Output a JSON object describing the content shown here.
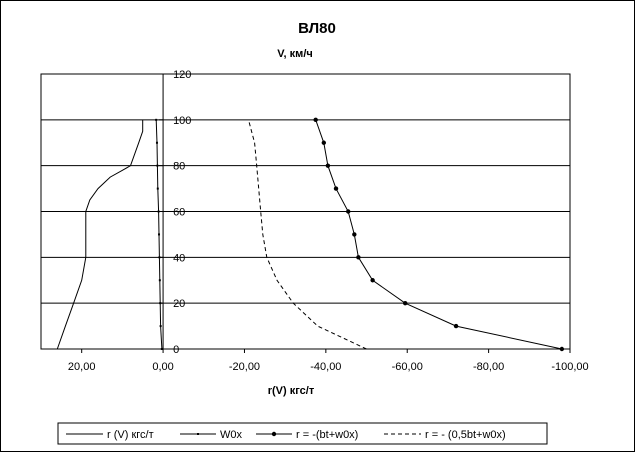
{
  "chart_data": {
    "type": "line",
    "title": "ВЛ80",
    "ylabel": "V, км/ч",
    "xlabel": "r(V) кгс/т",
    "xlim": [
      30,
      -100
    ],
    "ylim": [
      0,
      120
    ],
    "x_reversed": true,
    "y_axis_crosses_at_x": 0,
    "x_ticks": [
      "20,00",
      "0,00",
      "-20,00",
      "-40,00",
      "-60,00",
      "-80,00",
      "-100,00"
    ],
    "x_tick_values": [
      20,
      0,
      -20,
      -40,
      -60,
      -80,
      -100
    ],
    "y_ticks": [
      "0",
      "20",
      "40",
      "60",
      "80",
      "100",
      "120"
    ],
    "y_tick_values": [
      0,
      20,
      40,
      60,
      80,
      100,
      120
    ],
    "grid": "horizontal",
    "legend_position": "bottom",
    "series": [
      {
        "name": "r (V) кгс/т",
        "style": "solid",
        "markers": false,
        "points": [
          [
            26,
            0
          ],
          [
            24,
            10
          ],
          [
            22,
            20
          ],
          [
            20,
            30
          ],
          [
            19,
            40
          ],
          [
            19,
            50
          ],
          [
            19,
            60
          ],
          [
            18,
            65
          ],
          [
            16,
            70
          ],
          [
            13,
            75
          ],
          [
            10,
            78
          ],
          [
            8,
            80
          ],
          [
            6,
            90
          ],
          [
            5,
            95
          ],
          [
            5,
            100
          ]
        ]
      },
      {
        "name": "W0x",
        "style": "solid-dash-markers",
        "markers": true,
        "points": [
          [
            0.3,
            0
          ],
          [
            0.6,
            10
          ],
          [
            0.7,
            20
          ],
          [
            0.8,
            30
          ],
          [
            0.9,
            40
          ],
          [
            1.0,
            50
          ],
          [
            1.1,
            60
          ],
          [
            1.3,
            70
          ],
          [
            1.4,
            80
          ],
          [
            1.5,
            90
          ],
          [
            1.7,
            100
          ]
        ]
      },
      {
        "name": "r = -(bt+w0x)",
        "style": "solid",
        "markers": true,
        "points": [
          [
            -98,
            0
          ],
          [
            -72,
            10
          ],
          [
            -59.5,
            20
          ],
          [
            -51.5,
            30
          ],
          [
            -48,
            40
          ],
          [
            -47,
            50
          ],
          [
            -45.5,
            60
          ],
          [
            -42.5,
            70
          ],
          [
            -40.5,
            80
          ],
          [
            -39.5,
            90
          ],
          [
            -37.5,
            100
          ]
        ]
      },
      {
        "name": "r = - (0,5bt+w0x)",
        "style": "dashed",
        "markers": false,
        "points": [
          [
            -50,
            0
          ],
          [
            -38,
            10
          ],
          [
            -32,
            20
          ],
          [
            -28,
            30
          ],
          [
            -25.5,
            40
          ],
          [
            -24.5,
            50
          ],
          [
            -24,
            60
          ],
          [
            -23.5,
            70
          ],
          [
            -23,
            80
          ],
          [
            -22.5,
            90
          ],
          [
            -21,
            100
          ]
        ]
      }
    ]
  }
}
